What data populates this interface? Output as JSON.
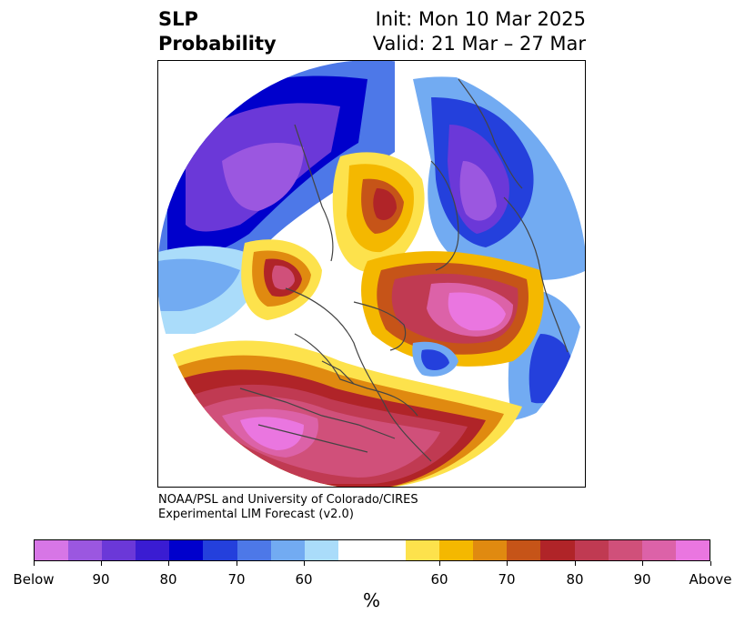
{
  "title": {
    "variable": "SLP",
    "product": "Probability",
    "init": "Init: Mon 10 Mar 2025",
    "valid": "Valid: 21 Mar – 27 Mar"
  },
  "credit": {
    "line1": "NOAA/PSL and University of Colorado/CIRES",
    "line2": "Experimental LIM Forecast (v2.0)"
  },
  "colorbar": {
    "unit": "%",
    "colors": [
      "#d776e6",
      "#9b57e0",
      "#6b38d8",
      "#3a1cd2",
      "#0000cc",
      "#2440dc",
      "#4d78e8",
      "#72abf2",
      "#aadcfa",
      "#ffffff",
      "#ffffff",
      "#fde24c",
      "#f4b800",
      "#e08a10",
      "#c65418",
      "#b02428",
      "#c03a52",
      "#d0507a",
      "#dc62a8",
      "#ea76e0"
    ],
    "tick_labels": [
      "Below",
      "90",
      "80",
      "70",
      "60",
      "60",
      "70",
      "80",
      "90",
      "Above"
    ]
  }
}
